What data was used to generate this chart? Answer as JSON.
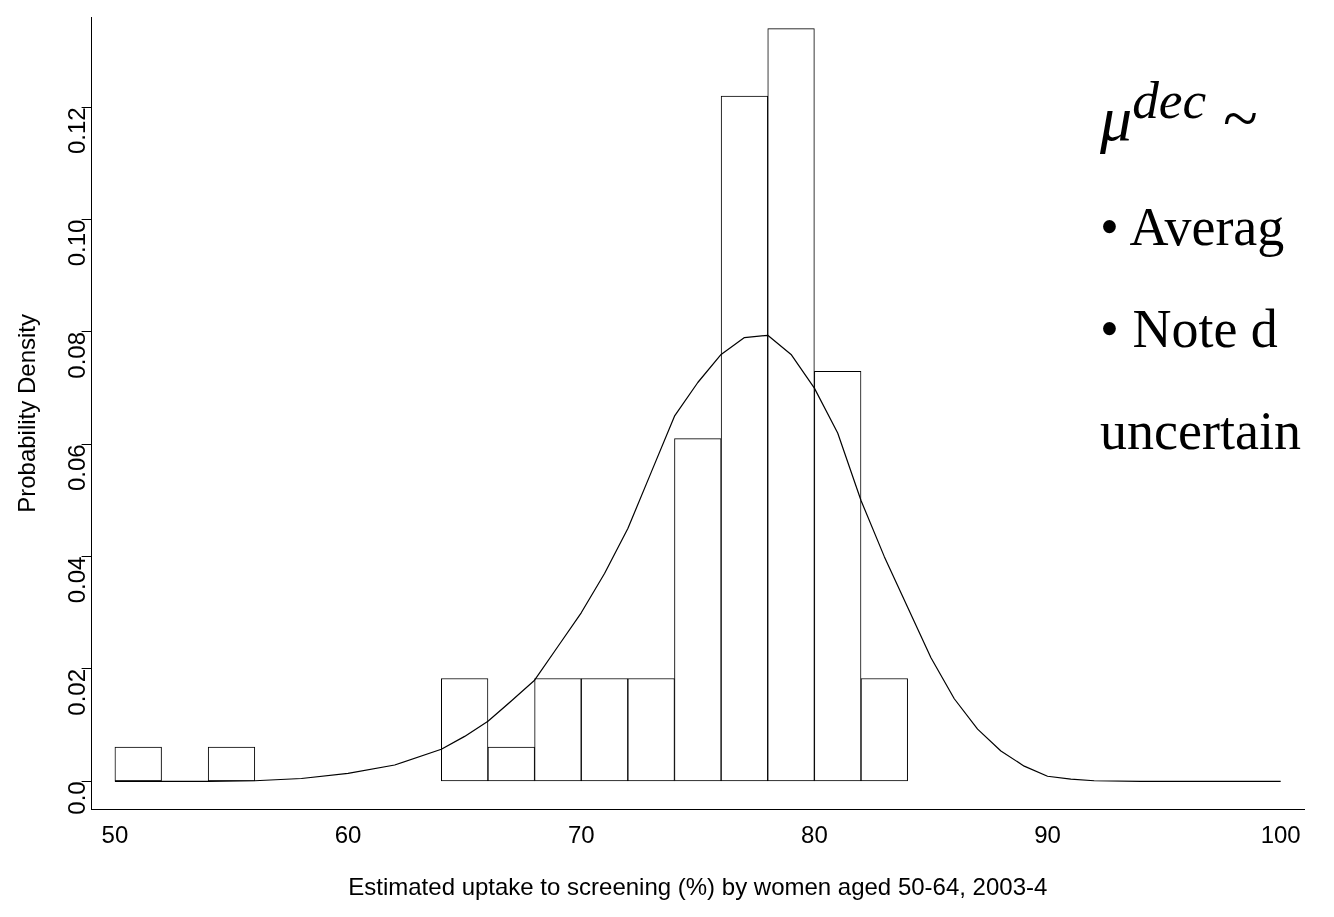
{
  "chart_data": {
    "type": "histogram",
    "xlabel": "Estimated uptake to screening (%) by women aged 50-64, 2003-4",
    "ylabel": "Probability Density",
    "bins": [
      50,
      52,
      54,
      56,
      58,
      60,
      62,
      64,
      66,
      68,
      70,
      72,
      74,
      76,
      78,
      80,
      82,
      84,
      86,
      88,
      90,
      92,
      94,
      96,
      98,
      100
    ],
    "values": [
      0.0061,
      0,
      0.0061,
      0,
      0,
      0,
      0,
      0.0183,
      0.0061,
      0.0183,
      0.0183,
      0.0183,
      0.061,
      0.122,
      0.134,
      0.073,
      0.0183,
      0,
      0,
      0,
      0,
      0,
      0,
      0,
      0
    ],
    "color": "#ffffff",
    "series": [
      {
        "type": "line",
        "color": "#000000",
        "x": [
          50,
          52,
          54,
          56,
          58,
          60,
          62,
          64,
          65,
          66,
          67,
          68,
          69,
          70,
          71,
          72,
          73,
          74,
          75,
          76,
          77,
          78,
          79,
          80,
          81,
          82,
          83,
          84,
          85,
          86,
          87,
          88,
          89,
          90,
          91,
          92,
          94,
          96,
          98,
          100
        ],
        "values": [
          0,
          0,
          0,
          0.0001,
          0.0005,
          0.0014,
          0.0029,
          0.0057,
          0.008,
          0.0107,
          0.0143,
          0.018,
          0.024,
          0.03,
          0.037,
          0.045,
          0.055,
          0.065,
          0.071,
          0.076,
          0.079,
          0.0794,
          0.076,
          0.07,
          0.062,
          0.05,
          0.04,
          0.031,
          0.022,
          0.0147,
          0.0093,
          0.0054,
          0.0027,
          0.0009,
          0.0004,
          0.0001,
          0,
          0,
          0,
          0
        ]
      }
    ],
    "xlim": [
      49,
      101
    ],
    "xticks": [
      50,
      60,
      70,
      80,
      90,
      100
    ],
    "ylim": [
      -0.005,
      0.136
    ],
    "yticks": [
      {
        "value": 0,
        "label": "0.0"
      },
      0.02,
      0.04,
      0.06,
      0.08,
      {
        "value": 0.1,
        "label": "0.10"
      },
      0.12
    ],
    "grid": false,
    "legend": false,
    "marker": "none",
    "annotations": [
      "μ$^{dec}$ ~",
      "• Averag",
      "• Note d",
      "uncertain"
    ]
  }
}
